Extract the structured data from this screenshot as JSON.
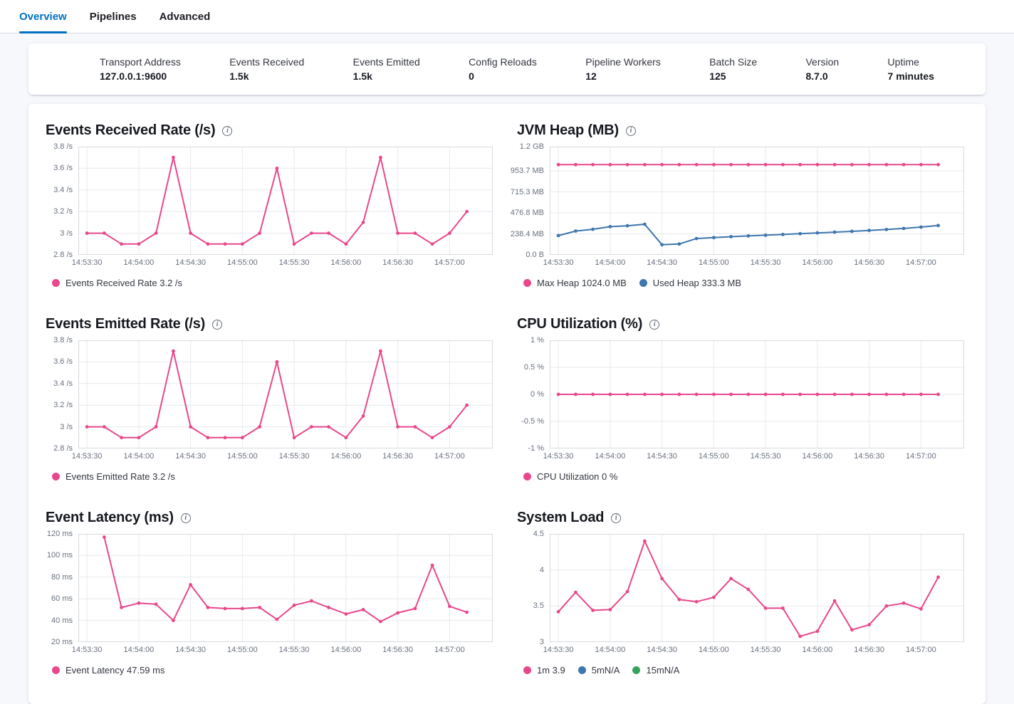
{
  "tabs": [
    {
      "label": "Overview",
      "active": true
    },
    {
      "label": "Pipelines",
      "active": false
    },
    {
      "label": "Advanced",
      "active": false
    }
  ],
  "summary": {
    "items": [
      {
        "label": "Transport Address",
        "value": "127.0.0.1:9600"
      },
      {
        "label": "Events Received",
        "value": "1.5k"
      },
      {
        "label": "Events Emitted",
        "value": "1.5k"
      },
      {
        "label": "Config Reloads",
        "value": "0"
      },
      {
        "label": "Pipeline Workers",
        "value": "12"
      },
      {
        "label": "Batch Size",
        "value": "125"
      },
      {
        "label": "Version",
        "value": "8.7.0"
      },
      {
        "label": "Uptime",
        "value": "7 minutes"
      }
    ]
  },
  "icons": {
    "info": "i"
  },
  "colors": {
    "pink": "#e8488b",
    "blue": "#3e76ad",
    "green": "#36a25e",
    "tab_active": "#0071c2",
    "grid": "#e7e9ed",
    "plot_border": "#d7dade",
    "tick_text": "#69707d"
  },
  "time_axis": {
    "tick_labels": [
      "14:53:30",
      "14:54:00",
      "14:54:30",
      "14:55:00",
      "14:55:30",
      "14:56:00",
      "14:56:30",
      "14:57:00"
    ],
    "tick_seconds": [
      0,
      30,
      60,
      90,
      120,
      150,
      180,
      210
    ],
    "domain_seconds": [
      -5,
      235
    ],
    "step_seconds": 10
  },
  "chart_data": [
    {
      "id": "events-received-rate",
      "type": "line",
      "title": "Events Received Rate (/s)",
      "ylim": [
        2.8,
        3.8
      ],
      "ytick_values": [
        2.8,
        3,
        3.2,
        3.4,
        3.6,
        3.8
      ],
      "ytick_labels": [
        "2.8 /s",
        "3 /s",
        "3.2 /s",
        "3.4 /s",
        "3.6 /s",
        "3.8 /s"
      ],
      "series": [
        {
          "name": "Events Received Rate",
          "color": "pink",
          "start_sec": 0,
          "values": [
            3,
            3,
            2.9,
            2.9,
            3,
            3.7,
            3,
            2.9,
            2.9,
            2.9,
            3,
            3.6,
            2.9,
            3,
            3,
            2.9,
            3.1,
            3.7,
            3,
            3,
            2.9,
            3,
            3.2
          ]
        }
      ],
      "legend": [
        {
          "label": "Events Received Rate 3.2 /s",
          "color": "pink"
        }
      ]
    },
    {
      "id": "jvm-heap",
      "type": "line",
      "title": "JVM Heap (MB)",
      "ylim": [
        0,
        1228.8
      ],
      "ytick_values": [
        0,
        238.4,
        476.8,
        715.3,
        953.7,
        1228.8
      ],
      "ytick_labels": [
        "0.0 B",
        "238.4 MB",
        "476.8 MB",
        "715.3 MB",
        "953.7 MB",
        "1.2 GB"
      ],
      "series": [
        {
          "name": "Max Heap",
          "color": "pink",
          "start_sec": 0,
          "values": [
            1024,
            1024,
            1024,
            1024,
            1024,
            1024,
            1024,
            1024,
            1024,
            1024,
            1024,
            1024,
            1024,
            1024,
            1024,
            1024,
            1024,
            1024,
            1024,
            1024,
            1024,
            1024,
            1024
          ]
        },
        {
          "name": "Used Heap",
          "color": "blue",
          "start_sec": 0,
          "values": [
            218,
            270,
            290,
            320,
            330,
            348,
            115,
            123,
            185,
            196,
            206,
            215,
            223,
            231,
            240,
            249,
            258,
            267,
            277,
            288,
            300,
            315,
            333
          ]
        }
      ],
      "legend": [
        {
          "label": "Max Heap 1024.0 MB",
          "color": "pink"
        },
        {
          "label": "Used Heap 333.3 MB",
          "color": "blue"
        }
      ]
    },
    {
      "id": "events-emitted-rate",
      "type": "line",
      "title": "Events Emitted Rate (/s)",
      "ylim": [
        2.8,
        3.8
      ],
      "ytick_values": [
        2.8,
        3,
        3.2,
        3.4,
        3.6,
        3.8
      ],
      "ytick_labels": [
        "2.8 /s",
        "3 /s",
        "3.2 /s",
        "3.4 /s",
        "3.6 /s",
        "3.8 /s"
      ],
      "series": [
        {
          "name": "Events Emitted Rate",
          "color": "pink",
          "start_sec": 0,
          "values": [
            3,
            3,
            2.9,
            2.9,
            3,
            3.7,
            3,
            2.9,
            2.9,
            2.9,
            3,
            3.6,
            2.9,
            3,
            3,
            2.9,
            3.1,
            3.7,
            3,
            3,
            2.9,
            3,
            3.2
          ]
        }
      ],
      "legend": [
        {
          "label": "Events Emitted Rate 3.2 /s",
          "color": "pink"
        }
      ]
    },
    {
      "id": "cpu-utilization",
      "type": "line",
      "title": "CPU Utilization (%)",
      "ylim": [
        -1,
        1
      ],
      "ytick_values": [
        -1,
        -0.5,
        0,
        0.5,
        1
      ],
      "ytick_labels": [
        "-1 %",
        "-0.5 %",
        "0 %",
        "0.5 %",
        "1 %"
      ],
      "series": [
        {
          "name": "CPU Utilization",
          "color": "pink",
          "start_sec": 0,
          "values": [
            0,
            0,
            0,
            0,
            0,
            0,
            0,
            0,
            0,
            0,
            0,
            0,
            0,
            0,
            0,
            0,
            0,
            0,
            0,
            0,
            0,
            0,
            0
          ]
        }
      ],
      "legend": [
        {
          "label": "CPU Utilization 0 %",
          "color": "pink"
        }
      ]
    },
    {
      "id": "event-latency",
      "type": "line",
      "title": "Event Latency (ms)",
      "ylim": [
        20,
        120
      ],
      "ytick_values": [
        20,
        40,
        60,
        80,
        100,
        120
      ],
      "ytick_labels": [
        "20 ms",
        "40 ms",
        "60 ms",
        "80 ms",
        "100 ms",
        "120 ms"
      ],
      "series": [
        {
          "name": "Event Latency",
          "color": "pink",
          "start_sec": 10,
          "values": [
            117,
            52,
            56,
            55,
            40,
            73,
            52,
            51,
            51,
            52,
            41,
            54,
            58,
            52,
            46,
            50,
            39,
            47,
            51,
            91,
            53,
            47.59
          ]
        }
      ],
      "legend": [
        {
          "label": "Event Latency 47.59 ms",
          "color": "pink"
        }
      ]
    },
    {
      "id": "system-load",
      "type": "line",
      "title": "System Load",
      "ylim": [
        3,
        4.5
      ],
      "ytick_values": [
        3,
        3.5,
        4,
        4.5
      ],
      "ytick_labels": [
        "3",
        "3.5",
        "4",
        "4.5"
      ],
      "series": [
        {
          "name": "1m",
          "color": "pink",
          "start_sec": 0,
          "values": [
            3.42,
            3.69,
            3.44,
            3.45,
            3.7,
            4.4,
            3.88,
            3.59,
            3.56,
            3.62,
            3.88,
            3.73,
            3.47,
            3.47,
            3.08,
            3.15,
            3.57,
            3.17,
            3.24,
            3.5,
            3.54,
            3.46,
            3.9
          ]
        }
      ],
      "legend": [
        {
          "label": "1m 3.9",
          "color": "pink"
        },
        {
          "label": "5mN/A",
          "color": "blue"
        },
        {
          "label": "15mN/A",
          "color": "green"
        }
      ]
    }
  ]
}
